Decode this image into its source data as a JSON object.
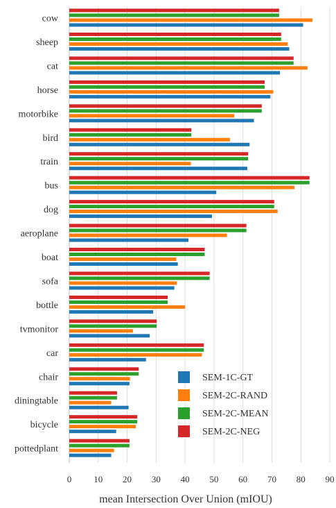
{
  "chart_data": {
    "type": "bar",
    "orientation": "horizontal",
    "categories": [
      "cow",
      "sheep",
      "cat",
      "horse",
      "motorbike",
      "bird",
      "train",
      "bus",
      "dog",
      "aeroplane",
      "boat",
      "sofa",
      "bottle",
      "tvmonitor",
      "car",
      "chair",
      "diningtable",
      "bicycle",
      "pottedplant"
    ],
    "series": [
      {
        "name": "SEM-2C-NEG",
        "color": "#d62728",
        "values": [
          72.5,
          73.2,
          77.5,
          67.5,
          66.5,
          42.2,
          61.8,
          83.0,
          70.8,
          61.2,
          46.8,
          48.5,
          34.0,
          30.2,
          46.5,
          24.0,
          16.5,
          23.5,
          20.8
        ]
      },
      {
        "name": "SEM-2C-MEAN",
        "color": "#2ca02c",
        "values": [
          72.5,
          73.2,
          77.5,
          67.5,
          66.5,
          42.2,
          61.8,
          83.0,
          70.8,
          61.2,
          46.8,
          48.5,
          34.0,
          30.2,
          46.5,
          24.0,
          16.5,
          23.5,
          20.8
        ]
      },
      {
        "name": "SEM-2C-RAND",
        "color": "#ff7f0e",
        "values": [
          84.0,
          75.5,
          82.3,
          70.5,
          57.0,
          55.5,
          42.0,
          77.8,
          72.0,
          54.5,
          37.0,
          37.2,
          40.0,
          22.0,
          45.8,
          21.0,
          14.5,
          23.0,
          15.5
        ]
      },
      {
        "name": "SEM-1C-GT",
        "color": "#1f77b4",
        "values": [
          80.8,
          76.0,
          72.8,
          69.5,
          63.8,
          62.3,
          61.5,
          50.8,
          49.3,
          41.2,
          37.5,
          36.3,
          29.0,
          27.8,
          26.5,
          20.8,
          20.5,
          16.2,
          14.5
        ]
      }
    ],
    "xlabel": "mean Intersection Over Union (mIOU)",
    "ylabel": "",
    "xlim": [
      0,
      90
    ],
    "xticks": [
      "0",
      "10",
      "20",
      "30",
      "40",
      "50",
      "60",
      "70",
      "80",
      "90"
    ],
    "grid": "vertical",
    "legend": {
      "placement": "bottom-center",
      "items": [
        {
          "label": "SEM-1C-GT",
          "color": "#1f77b4"
        },
        {
          "label": "SEM-2C-RAND",
          "color": "#ff7f0e"
        },
        {
          "label": "SEM-2C-MEAN",
          "color": "#2ca02c"
        },
        {
          "label": "SEM-2C-NEG",
          "color": "#d62728"
        }
      ]
    }
  }
}
